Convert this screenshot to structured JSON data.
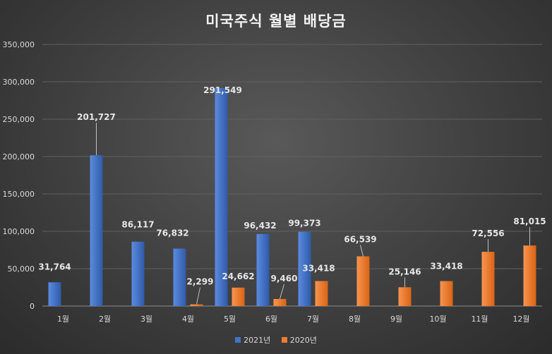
{
  "chart_data": {
    "type": "bar",
    "title": "미국주식 월별 배당금",
    "categories": [
      "1월",
      "2월",
      "3월",
      "4월",
      "5월",
      "6월",
      "7월",
      "8월",
      "9월",
      "10월",
      "11월",
      "12월"
    ],
    "series": [
      {
        "name": "2021년",
        "color": "#4472c4",
        "values": [
          31764,
          201727,
          86117,
          76832,
          291549,
          96432,
          99373,
          null,
          null,
          null,
          null,
          null
        ],
        "labels": [
          "31,764",
          "201,727",
          "86,117",
          "76,832",
          "291,549",
          "96,432",
          "99,373",
          "",
          "",
          "",
          "",
          ""
        ]
      },
      {
        "name": "2020년",
        "color": "#ed7d31",
        "values": [
          null,
          null,
          null,
          2299,
          24662,
          9460,
          33418,
          66539,
          25146,
          33418,
          72556,
          81015
        ],
        "labels": [
          "",
          "",
          "",
          "2,299",
          "24,662",
          "9,460",
          "33,418",
          "66,539",
          "25,146",
          "33,418",
          "72,556",
          "81,015"
        ]
      }
    ],
    "ylim": [
      0,
      350000
    ],
    "yticks": [
      "0",
      "50,000",
      "100,000",
      "150,000",
      "200,000",
      "250,000",
      "300,000",
      "350,000"
    ],
    "ytick_values": [
      0,
      50000,
      100000,
      150000,
      200000,
      250000,
      300000,
      350000
    ],
    "grid": true,
    "legend_position": "bottom",
    "xlabel": "",
    "ylabel": ""
  }
}
